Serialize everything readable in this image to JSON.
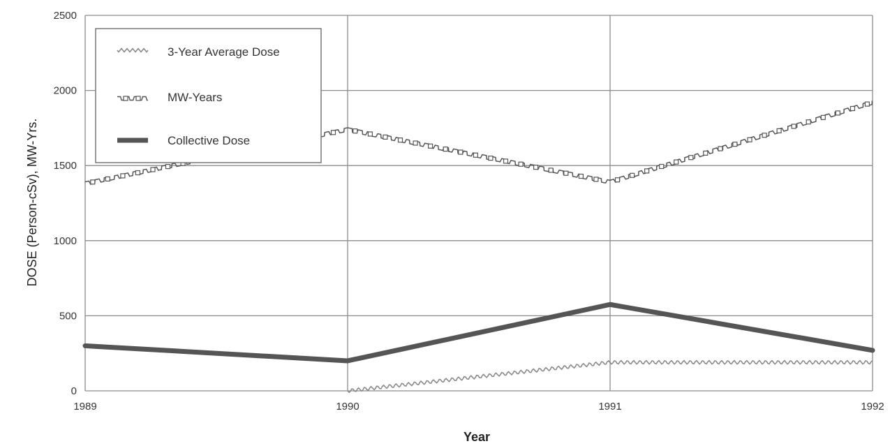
{
  "chart_data": {
    "type": "line",
    "title": "",
    "xlabel": "Year",
    "ylabel": "DOSE (Person-cSv), MW-Yrs.",
    "x": [
      1989,
      1990,
      1991,
      1992
    ],
    "xlim": [
      1989,
      1992
    ],
    "ylim": [
      0,
      2500
    ],
    "x_ticks": [
      "1989",
      "1990",
      "1991",
      "1992"
    ],
    "y_ticks": [
      "0",
      "500",
      "1000",
      "1500",
      "2000",
      "2500"
    ],
    "grid": true,
    "legend_position": "top-left",
    "series": [
      {
        "name": "3-Year Average Dose",
        "values": [
          null,
          0,
          190,
          190
        ],
        "style": "wavy",
        "color": "#8a8a8a"
      },
      {
        "name": "MW-Years",
        "values": [
          1380,
          1740,
          1390,
          1920
        ],
        "style": "square-marker",
        "color": "#555555"
      },
      {
        "name": "Collective Dose",
        "values": [
          300,
          200,
          575,
          270
        ],
        "style": "thick",
        "color": "#555555"
      }
    ]
  }
}
